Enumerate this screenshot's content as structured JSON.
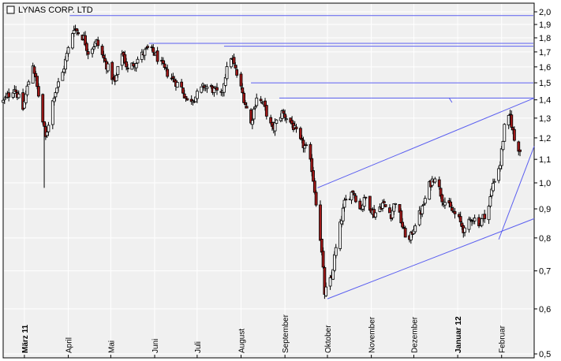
{
  "chart_data": {
    "type": "candlestick",
    "title": "LYNAS CORP. LTD",
    "y_scale": "log",
    "ylim": [
      0.5,
      2.0
    ],
    "y_ticks": [
      "2,0",
      "1,9",
      "1,8",
      "1,7",
      "1,6",
      "1,5",
      "1,4",
      "1,3",
      "1,2",
      "1,1",
      "1,0",
      "0,9",
      "0,8",
      "0,7",
      "0,6",
      "0,5"
    ],
    "x_range": [
      "2011-02-14",
      "2012-02-24"
    ],
    "month_labels": [
      {
        "label": "März 11",
        "date": "2011-03-01",
        "bold": true
      },
      {
        "label": "April",
        "date": "2011-04-01",
        "bold": false
      },
      {
        "label": "Mai",
        "date": "2011-05-01",
        "bold": false
      },
      {
        "label": "Juni",
        "date": "2011-06-01",
        "bold": false
      },
      {
        "label": "Juli",
        "date": "2011-07-01",
        "bold": false
      },
      {
        "label": "August",
        "date": "2011-08-01",
        "bold": false
      },
      {
        "label": "September",
        "date": "2011-09-01",
        "bold": false
      },
      {
        "label": "Oktober",
        "date": "2011-10-01",
        "bold": false
      },
      {
        "label": "November",
        "date": "2011-11-01",
        "bold": false
      },
      {
        "label": "Dezember",
        "date": "2011-12-01",
        "bold": false
      },
      {
        "label": "Januar 12",
        "date": "2012-01-01",
        "bold": true
      },
      {
        "label": "Februar",
        "date": "2012-02-01",
        "bold": false
      }
    ],
    "resistance_levels": [
      {
        "value": 1.97,
        "from": "2011-04-02"
      },
      {
        "value": 1.76,
        "from": "2011-05-28"
      },
      {
        "value": 1.74,
        "from": "2011-07-20"
      },
      {
        "value": 1.5,
        "from": "2011-08-08"
      },
      {
        "value": 1.41,
        "from": "2011-08-28"
      }
    ],
    "trend_lines": [
      {
        "from": [
          "2011-09-24",
          0.98
        ],
        "to": [
          "2012-02-24",
          1.41
        ]
      },
      {
        "from": [
          "2011-10-01",
          0.625
        ],
        "to": [
          "2012-02-24",
          0.865
        ]
      },
      {
        "from": [
          "2012-01-30",
          0.795
        ],
        "to": [
          "2012-02-24",
          1.16
        ]
      }
    ],
    "colors": {
      "plot_background": "#f0f0f0",
      "grid": "#ffffff",
      "guide_lines": "#5a5ef0",
      "down_candle": "#a01818",
      "up_candle": "#ffffff"
    }
  }
}
